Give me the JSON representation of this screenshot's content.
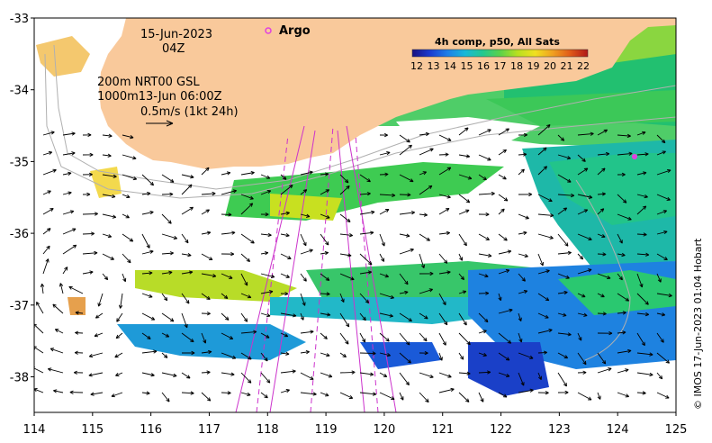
{
  "map": {
    "date_line": "15-Jun-2023",
    "time_line": "04Z",
    "contour_line_1": "200m  NRT00 GSL",
    "contour_line_2": "1000m13-Jun 06:00Z",
    "scale_arrow_label": "0.5m/s (1kt 24h)",
    "argo_label": "Argo",
    "colorbar_title": "4h comp, p50, All Sats",
    "colorbar_ticks": [
      "12",
      "13",
      "14",
      "15",
      "16",
      "17",
      "18",
      "19",
      "20",
      "21",
      "22"
    ],
    "credit": "© IMOS 17-Jun-2023 01:04 Hobart",
    "x_ticks": [
      "114",
      "115",
      "116",
      "117",
      "118",
      "119",
      "120",
      "121",
      "122",
      "123",
      "124",
      "125"
    ],
    "y_ticks": [
      "-33",
      "-34",
      "-35",
      "-36",
      "-37",
      "-38"
    ],
    "lon_range": [
      114,
      125
    ],
    "lat_range": [
      -38.5,
      -33
    ],
    "land_color": "#f9c99b",
    "argo_color": "#e040e0",
    "track_color": "#cc33cc"
  }
}
